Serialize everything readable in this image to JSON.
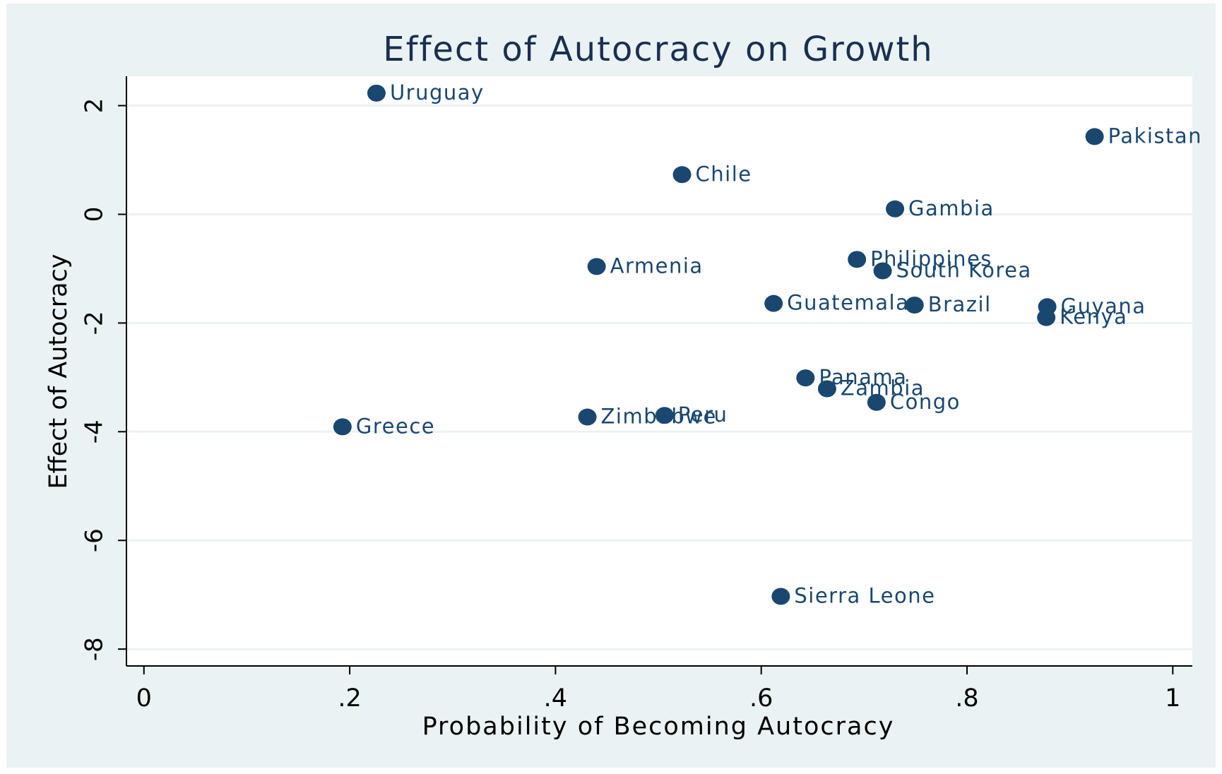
{
  "chart_data": {
    "type": "scatter",
    "title": "Effect of Autocracy on Growth",
    "xlabel": "Probability of Becoming Autocracy",
    "ylabel": "Effect of Autocracy",
    "labels": [
      "Uruguay",
      "Pakistan",
      "Chile",
      "Gambia",
      "Armenia",
      "Philippines",
      "South Korea",
      "Guatemala",
      "Brazil",
      "Guyana",
      "Kenya",
      "Panama",
      "Zambia",
      "Congo",
      "Greece",
      "Zimbabwe",
      "Peru",
      "Sierra Leone"
    ],
    "x": [
      0.226,
      0.924,
      0.523,
      0.73,
      0.44,
      0.693,
      0.718,
      0.612,
      0.749,
      0.878,
      0.877,
      0.643,
      0.664,
      0.712,
      0.193,
      0.431,
      0.506,
      0.619
    ],
    "y": [
      2.23,
      1.43,
      0.73,
      0.1,
      -0.96,
      -0.83,
      -1.04,
      -1.64,
      -1.67,
      -1.7,
      -1.9,
      -3.01,
      -3.21,
      -3.46,
      -3.91,
      -3.73,
      -3.7,
      -7.03
    ],
    "color": "#1a476f",
    "xlim": [
      -0.017,
      1.019
    ],
    "ylim": [
      -8.31,
      2.54
    ],
    "xticks": [
      0,
      {
        "value": 0.2,
        "label": ".2"
      },
      {
        "value": 0.4,
        "label": ".4"
      },
      {
        "value": 0.6,
        "label": ".6"
      },
      {
        "value": 0.8,
        "label": ".8"
      },
      1
    ],
    "yticks": [
      -8,
      -6,
      -4,
      -2,
      0,
      2
    ],
    "grid": true
  }
}
